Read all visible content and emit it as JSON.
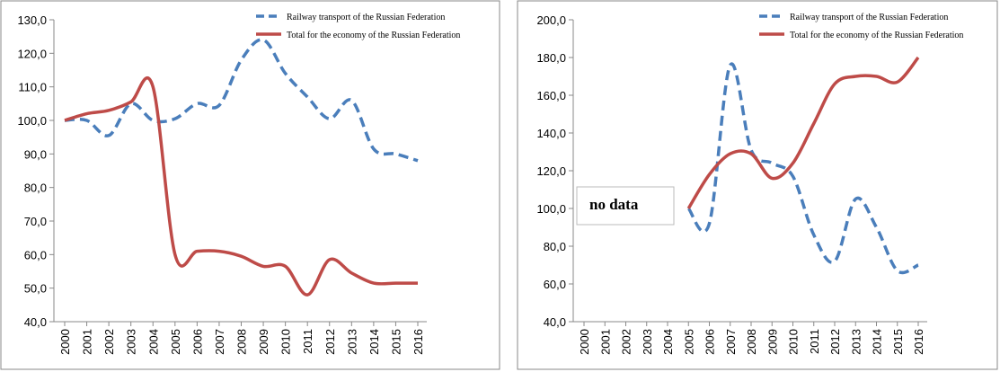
{
  "chart_data": [
    {
      "type": "line",
      "categories": [
        "2000",
        "2001",
        "2002",
        "2003",
        "2004",
        "2005",
        "2006",
        "2007",
        "2008",
        "2009",
        "2010",
        "2011",
        "2012",
        "2013",
        "2014",
        "2015",
        "2016"
      ],
      "series": [
        {
          "name": "Railway transport of the Russian Federation",
          "color": "#4a7ebb",
          "dashed": true,
          "values": [
            100,
            100,
            95.5,
            105,
            100,
            100.5,
            105,
            104.5,
            118,
            124,
            114,
            107,
            100.5,
            106,
            91.5,
            90,
            88
          ]
        },
        {
          "name": "Total for the economy of the Russian Federation",
          "color": "#be4b48",
          "dashed": false,
          "values": [
            100,
            102,
            103,
            105.5,
            110,
            60,
            61,
            61,
            59.5,
            56.5,
            56.5,
            48,
            58.5,
            54.5,
            51.5,
            51.5,
            51.5
          ]
        }
      ],
      "ylim": [
        40,
        130
      ],
      "yticks": [
        {
          "value": 40,
          "label": "40,0"
        },
        {
          "value": 50,
          "label": "50,0"
        },
        {
          "value": 60,
          "label": "60,0"
        },
        {
          "value": 70,
          "label": "70,0"
        },
        {
          "value": 80,
          "label": "80,0"
        },
        {
          "value": 90,
          "label": "90,0"
        },
        {
          "value": 100,
          "label": "100,0"
        },
        {
          "value": 110,
          "label": "110,0"
        },
        {
          "value": 120,
          "label": "120,0"
        },
        {
          "value": 130,
          "label": "130,0"
        }
      ],
      "legend": "upper right",
      "grid": false
    },
    {
      "type": "line",
      "categories": [
        "2000",
        "2001",
        "2002",
        "2003",
        "2004",
        "2005",
        "2006",
        "2007",
        "2008",
        "2009",
        "2010",
        "2011",
        "2012",
        "2013",
        "2014",
        "2015",
        "2016"
      ],
      "series": [
        {
          "name": "Railway transport of the Russian Federation",
          "color": "#4a7ebb",
          "dashed": true,
          "values": [
            null,
            null,
            null,
            null,
            null,
            100,
            92,
            176,
            131,
            124,
            117,
            86,
            72,
            105,
            90,
            67,
            70
          ]
        },
        {
          "name": "Total for the economy of the Russian Federation",
          "color": "#be4b48",
          "dashed": false,
          "values": [
            null,
            null,
            null,
            null,
            null,
            100,
            118,
            129,
            129,
            116,
            124,
            145,
            166,
            170,
            170,
            167,
            180
          ]
        }
      ],
      "ylim": [
        40,
        200
      ],
      "yticks": [
        {
          "value": 40,
          "label": "40,0"
        },
        {
          "value": 60,
          "label": "60,0"
        },
        {
          "value": 80,
          "label": "80,0"
        },
        {
          "value": 100,
          "label": "100,0"
        },
        {
          "value": 120,
          "label": "120,0"
        },
        {
          "value": 140,
          "label": "140,0"
        },
        {
          "value": 160,
          "label": "160,0"
        },
        {
          "value": 180,
          "label": "180,0"
        },
        {
          "value": 200,
          "label": "200,0"
        }
      ],
      "annotation": "no data",
      "legend": "upper right",
      "grid": false
    }
  ]
}
